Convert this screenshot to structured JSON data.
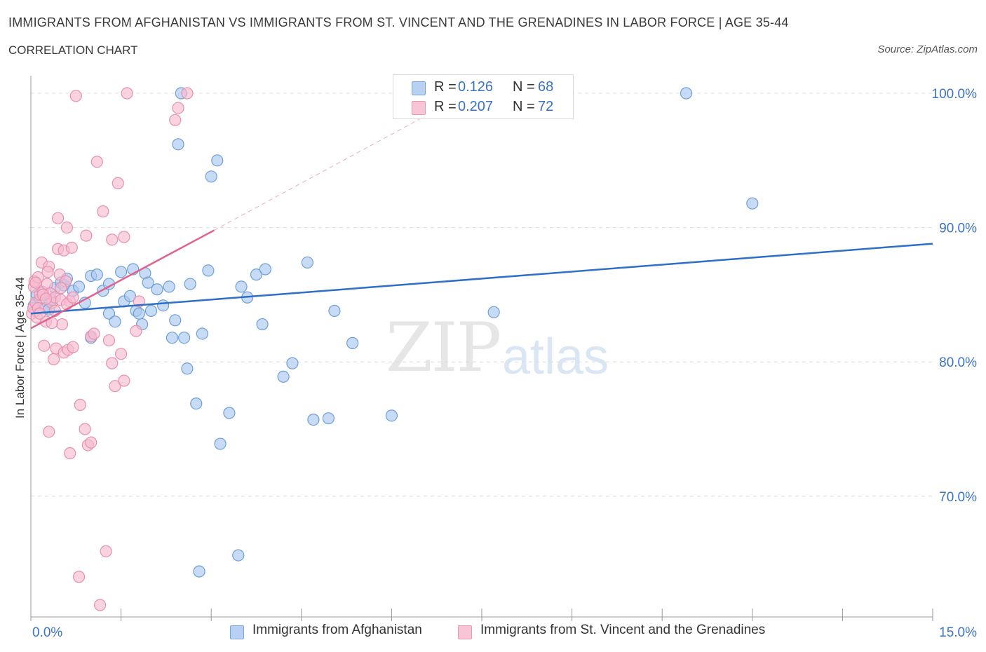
{
  "title": "IMMIGRANTS FROM AFGHANISTAN VS IMMIGRANTS FROM ST. VINCENT AND THE GRENADINES IN LABOR FORCE | AGE 35-44",
  "subtitle": "CORRELATION CHART",
  "source": "Source: ZipAtlas.com",
  "watermark": {
    "zip": "ZIP",
    "atlas": "atlas"
  },
  "legend": {
    "rows": [
      {
        "r_label": "R =",
        "r_value": "0.126",
        "n_label": "N =",
        "n_value": "68"
      },
      {
        "r_label": "R =",
        "r_value": "0.207",
        "n_label": "N =",
        "n_value": "72"
      }
    ]
  },
  "bottom_legend": {
    "series1": "Immigrants from Afghanistan",
    "series2": "Immigrants from St. Vincent and the Grenadines"
  },
  "colors": {
    "blue_fill": "#aac8f0",
    "blue_stroke": "#6e9fd8",
    "blue_line": "#2e6fc9",
    "pink_fill": "#f6bcd0",
    "pink_stroke": "#e890ae",
    "pink_line": "#e0638f",
    "axis_text": "#3b73c4",
    "grid": "#dcdcdc"
  },
  "chart_data": {
    "type": "scatter",
    "title": "IMMIGRANTS FROM AFGHANISTAN VS IMMIGRANTS FROM ST. VINCENT AND THE GRENADINES IN LABOR FORCE | AGE 35-44",
    "xlabel": "",
    "ylabel": "In Labor Force | Age 35-44",
    "xlim": [
      0,
      15
    ],
    "ylim": [
      60,
      100
    ],
    "x_tick_labels": [
      "0.0%",
      "15.0%"
    ],
    "y_ticks": [
      70,
      80,
      90,
      100
    ],
    "y_tick_labels": [
      "70.0%",
      "80.0%",
      "90.0%",
      "100.0%"
    ],
    "grid": true,
    "legend_position": "top-center",
    "series": [
      {
        "name": "Immigrants from Afghanistan",
        "R": 0.126,
        "N": 68,
        "trend": {
          "x": [
            0,
            15
          ],
          "y": [
            83.6,
            88.8
          ]
        },
        "points": [
          [
            0.05,
            84.2
          ],
          [
            0.08,
            83.8
          ],
          [
            0.1,
            85.0
          ],
          [
            0.15,
            84.7
          ],
          [
            0.2,
            85.2
          ],
          [
            0.25,
            84.0
          ],
          [
            0.3,
            83.9
          ],
          [
            0.4,
            85.5
          ],
          [
            0.5,
            85.9
          ],
          [
            0.55,
            85.7
          ],
          [
            0.6,
            86.2
          ],
          [
            0.7,
            85.3
          ],
          [
            0.8,
            85.6
          ],
          [
            0.9,
            84.4
          ],
          [
            1.0,
            86.4
          ],
          [
            1.0,
            81.8
          ],
          [
            1.1,
            86.5
          ],
          [
            1.2,
            85.3
          ],
          [
            1.3,
            83.6
          ],
          [
            1.3,
            85.8
          ],
          [
            1.4,
            83.0
          ],
          [
            1.5,
            86.7
          ],
          [
            1.55,
            84.5
          ],
          [
            1.65,
            84.9
          ],
          [
            1.7,
            86.9
          ],
          [
            1.75,
            83.8
          ],
          [
            1.8,
            83.6
          ],
          [
            1.85,
            82.8
          ],
          [
            1.9,
            86.6
          ],
          [
            1.95,
            85.9
          ],
          [
            2.0,
            83.8
          ],
          [
            2.1,
            85.4
          ],
          [
            2.2,
            84.2
          ],
          [
            2.3,
            85.6
          ],
          [
            2.35,
            81.8
          ],
          [
            2.4,
            83.1
          ],
          [
            2.45,
            96.2
          ],
          [
            2.5,
            100.0
          ],
          [
            2.55,
            81.8
          ],
          [
            2.6,
            79.5
          ],
          [
            2.65,
            85.8
          ],
          [
            2.75,
            76.9
          ],
          [
            2.8,
            64.4
          ],
          [
            2.85,
            82.1
          ],
          [
            2.95,
            86.8
          ],
          [
            3.0,
            93.8
          ],
          [
            3.1,
            95.0
          ],
          [
            3.15,
            73.9
          ],
          [
            3.3,
            76.2
          ],
          [
            3.45,
            65.6
          ],
          [
            3.5,
            85.6
          ],
          [
            3.6,
            84.8
          ],
          [
            3.75,
            86.5
          ],
          [
            3.85,
            82.8
          ],
          [
            3.9,
            86.9
          ],
          [
            4.2,
            78.9
          ],
          [
            4.35,
            79.9
          ],
          [
            4.6,
            87.4
          ],
          [
            4.7,
            75.7
          ],
          [
            4.95,
            75.8
          ],
          [
            5.05,
            83.8
          ],
          [
            5.35,
            81.4
          ],
          [
            6.0,
            76.0
          ],
          [
            6.8,
            100.0
          ],
          [
            7.7,
            83.7
          ],
          [
            10.9,
            100.0
          ],
          [
            12.0,
            91.8
          ],
          [
            0.35,
            84.6
          ]
        ]
      },
      {
        "name": "Immigrants from St. Vincent and the Grenadines",
        "R": 0.207,
        "N": 72,
        "trend": {
          "x": [
            0,
            3.05
          ],
          "y": [
            82.5,
            89.8
          ]
        },
        "trend_dashed": {
          "x": [
            3.05,
            6.6
          ],
          "y": [
            89.8,
            98.4
          ]
        },
        "points": [
          [
            0.02,
            83.6
          ],
          [
            0.04,
            84.0
          ],
          [
            0.05,
            85.6
          ],
          [
            0.06,
            86.0
          ],
          [
            0.08,
            84.4
          ],
          [
            0.1,
            83.3
          ],
          [
            0.12,
            84.0
          ],
          [
            0.15,
            85.0
          ],
          [
            0.18,
            87.4
          ],
          [
            0.2,
            85.2
          ],
          [
            0.22,
            81.2
          ],
          [
            0.25,
            83.0
          ],
          [
            0.27,
            85.8
          ],
          [
            0.3,
            87.1
          ],
          [
            0.3,
            74.8
          ],
          [
            0.32,
            85.1
          ],
          [
            0.35,
            84.4
          ],
          [
            0.38,
            80.2
          ],
          [
            0.4,
            84.8
          ],
          [
            0.42,
            81.0
          ],
          [
            0.45,
            88.4
          ],
          [
            0.45,
            90.7
          ],
          [
            0.48,
            86.5
          ],
          [
            0.5,
            84.6
          ],
          [
            0.52,
            82.8
          ],
          [
            0.55,
            88.3
          ],
          [
            0.55,
            80.7
          ],
          [
            0.58,
            86.0
          ],
          [
            0.6,
            90.0
          ],
          [
            0.62,
            80.9
          ],
          [
            0.65,
            73.2
          ],
          [
            0.65,
            84.5
          ],
          [
            0.68,
            88.5
          ],
          [
            0.7,
            81.1
          ],
          [
            0.75,
            99.8
          ],
          [
            0.8,
            64.0
          ],
          [
            0.82,
            76.8
          ],
          [
            0.9,
            75.0
          ],
          [
            0.92,
            89.4
          ],
          [
            0.95,
            73.8
          ],
          [
            1.0,
            74.0
          ],
          [
            1.0,
            81.9
          ],
          [
            1.05,
            82.1
          ],
          [
            1.1,
            94.9
          ],
          [
            1.15,
            61.9
          ],
          [
            1.2,
            91.2
          ],
          [
            1.25,
            65.9
          ],
          [
            1.3,
            81.6
          ],
          [
            1.35,
            89.1
          ],
          [
            1.35,
            79.9
          ],
          [
            1.4,
            78.2
          ],
          [
            1.45,
            93.3
          ],
          [
            1.5,
            80.6
          ],
          [
            1.55,
            78.6
          ],
          [
            1.55,
            89.3
          ],
          [
            1.75,
            82.3
          ],
          [
            1.8,
            84.5
          ],
          [
            1.6,
            100.0
          ],
          [
            2.4,
            98.0
          ],
          [
            2.45,
            98.9
          ],
          [
            2.6,
            100.0
          ],
          [
            0.12,
            86.3
          ],
          [
            0.2,
            85.0
          ],
          [
            0.15,
            83.6
          ],
          [
            0.25,
            84.7
          ],
          [
            0.35,
            82.9
          ],
          [
            0.08,
            85.9
          ],
          [
            0.28,
            86.7
          ],
          [
            0.6,
            84.3
          ],
          [
            0.4,
            83.8
          ],
          [
            0.5,
            85.5
          ],
          [
            0.7,
            84.8
          ]
        ]
      }
    ]
  }
}
